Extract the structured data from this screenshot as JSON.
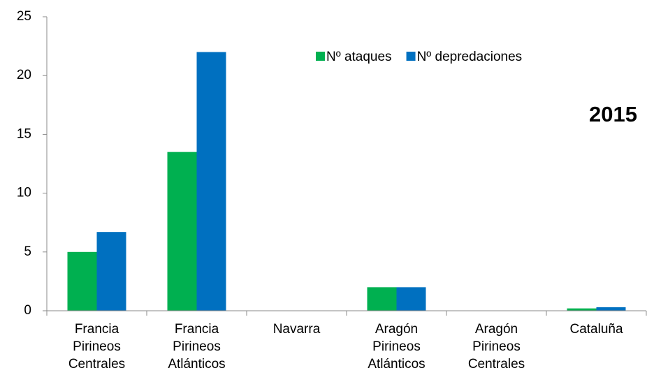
{
  "chart_data": {
    "type": "bar",
    "annotation": "2015",
    "categories": [
      "Francia Pirineos Centrales",
      "Francia Pirineos Atlánticos",
      "Navarra",
      "Aragón Pirineos Atlánticos",
      "Aragón Pirineos Centrales",
      "Cataluña"
    ],
    "series": [
      {
        "name": "Nº ataques",
        "color": "#00b050",
        "values": [
          5,
          13.5,
          0,
          2,
          0,
          0.2
        ]
      },
      {
        "name": "Nº depredaciones",
        "color": "#0070c0",
        "values": [
          6.7,
          22,
          0,
          2,
          0,
          0.3
        ]
      }
    ],
    "ylim": [
      0,
      25
    ],
    "yticks": [
      0,
      5,
      10,
      15,
      20,
      25
    ],
    "grid": false,
    "legend": "top-right"
  }
}
